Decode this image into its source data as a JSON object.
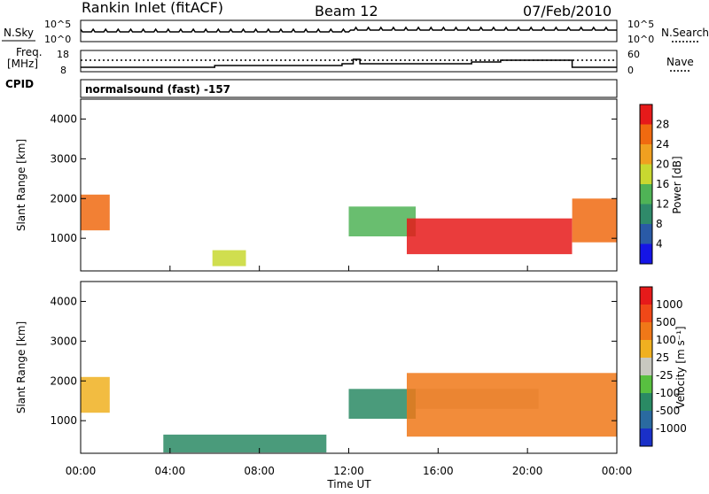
{
  "header": {
    "station": "Rankin Inlet (fitACF)",
    "beam": "Beam 12",
    "date": "07/Feb/2010"
  },
  "top_panel": {
    "left_label": "N.Sky",
    "right_label": "N.Search",
    "left_ticks": [
      "10^5",
      "10^0"
    ],
    "right_ticks": [
      "10^5",
      "10^0"
    ]
  },
  "freq_panel": {
    "left_label_1": "Freq.",
    "left_label_2": "[MHz]",
    "left_ticks": [
      "18",
      "8"
    ],
    "right_label": "Nave",
    "right_ticks": [
      "60",
      "0"
    ]
  },
  "cpid": {
    "label": "CPID",
    "text": "normalsound (fast) -157"
  },
  "chart_data": [
    {
      "type": "heatmap",
      "name": "power",
      "ylabel": "Slant Range [km]",
      "ylim": [
        180,
        4500
      ],
      "yticks": [
        "1000",
        "2000",
        "3000",
        "4000"
      ],
      "xlim_hours": [
        0,
        24
      ],
      "colorbar_label": "Power [dB]",
      "colorbar_ticks": [
        "4",
        "8",
        "12",
        "16",
        "20",
        "24",
        "28"
      ],
      "colors": [
        "#1515e6",
        "#2a5aa6",
        "#2f8a6a",
        "#4fb356",
        "#c8d830",
        "#f0a020",
        "#f06a10",
        "#e61a1a"
      ],
      "patches": [
        {
          "t0": 0.0,
          "t1": 1.3,
          "r0": 1200,
          "r1": 2100,
          "level": 6
        },
        {
          "t0": 5.9,
          "t1": 7.4,
          "r0": 300,
          "r1": 700,
          "level": 4
        },
        {
          "t0": 12.0,
          "t1": 15.0,
          "r0": 1050,
          "r1": 1800,
          "level": 3
        },
        {
          "t0": 14.6,
          "t1": 22.0,
          "r0": 600,
          "r1": 1500,
          "level": 7
        },
        {
          "t0": 22.0,
          "t1": 24.0,
          "r0": 900,
          "r1": 2000,
          "level": 6
        }
      ]
    },
    {
      "type": "heatmap",
      "name": "velocity",
      "ylabel": "Slant Range [km]",
      "ylim": [
        180,
        4500
      ],
      "yticks": [
        "1000",
        "2000",
        "3000",
        "4000"
      ],
      "xlim_hours": [
        0,
        24
      ],
      "colorbar_label": "Velocity [m s⁻¹]",
      "colorbar_ticks": [
        "1000",
        "500",
        "100",
        "25",
        "-25",
        "-100",
        "-500",
        "-1000"
      ],
      "colors": [
        "#1a30c8",
        "#2a6aa0",
        "#2a8a64",
        "#58c040",
        "#c8c8c0",
        "#f0b020",
        "#f07818",
        "#f04818",
        "#e61a1a"
      ],
      "patches": [
        {
          "t0": 0.0,
          "t1": 1.3,
          "r0": 1200,
          "r1": 2100,
          "level": 5
        },
        {
          "t0": 3.7,
          "t1": 11.0,
          "r0": 200,
          "r1": 650,
          "level": 2
        },
        {
          "t0": 12.0,
          "t1": 15.0,
          "r0": 1050,
          "r1": 1800,
          "level": 2
        },
        {
          "t0": 15.0,
          "t1": 20.5,
          "r0": 1300,
          "r1": 1800,
          "level": 4
        },
        {
          "t0": 14.6,
          "t1": 24.0,
          "r0": 600,
          "r1": 2200,
          "level": 6
        }
      ]
    }
  ],
  "xaxis": {
    "ticks": [
      "00:00",
      "04:00",
      "08:00",
      "12:00",
      "16:00",
      "20:00",
      "00:00"
    ],
    "label": "Time UT"
  }
}
